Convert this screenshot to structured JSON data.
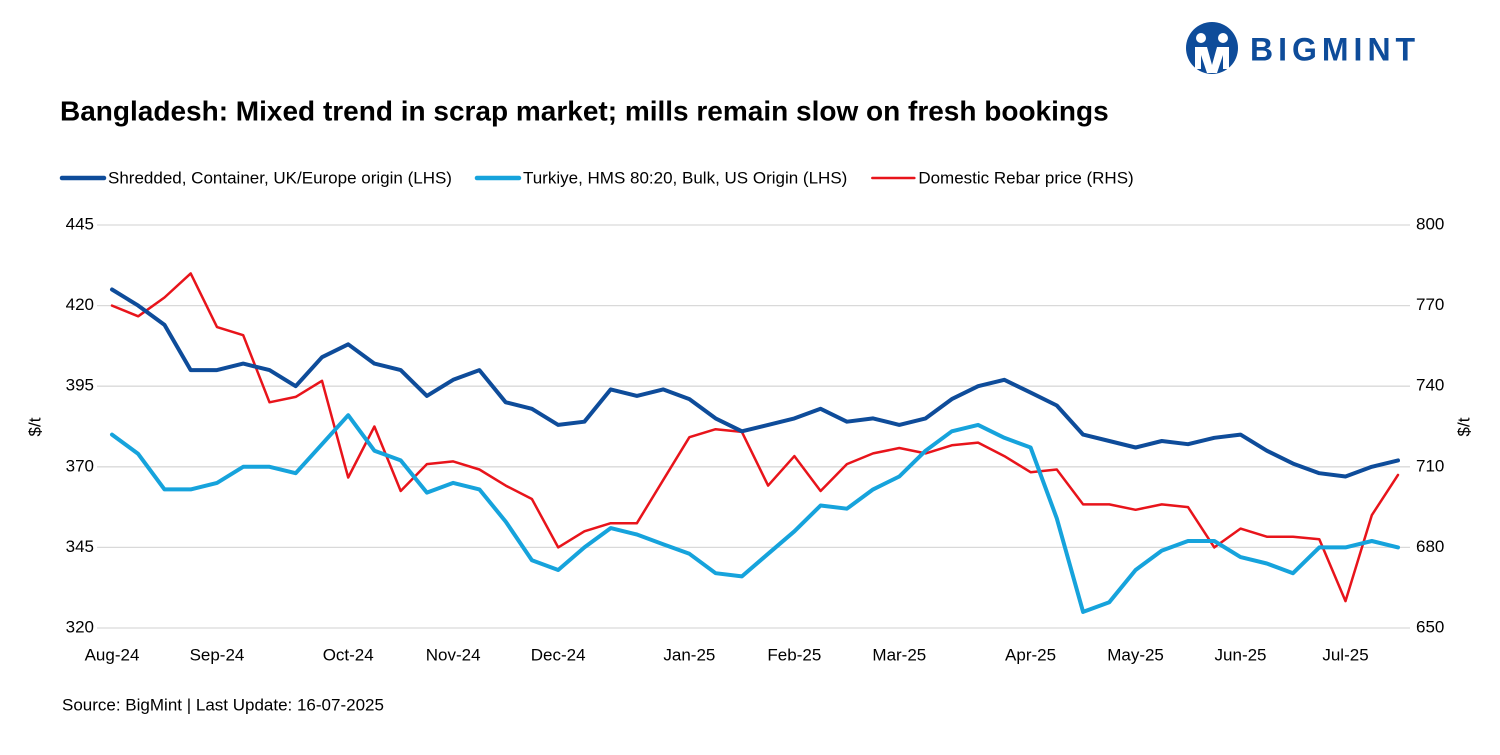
{
  "chart_data": {
    "type": "line",
    "title": "Bangladesh: Mixed trend in scrap market; mills remain slow on fresh bookings",
    "brand": "BIGMINT",
    "source": "Source: BigMint | Last Update: 16-07-2025",
    "ylabel": "$/t",
    "y2label": "$/t",
    "categories": [
      "Aug-24",
      null,
      null,
      null,
      "Sep-24",
      null,
      null,
      null,
      null,
      "Oct-24",
      null,
      null,
      null,
      "Nov-24",
      null,
      null,
      null,
      "Dec-24",
      null,
      null,
      null,
      null,
      "Jan-25",
      null,
      null,
      null,
      "Feb-25",
      null,
      null,
      null,
      "Mar-25",
      null,
      null,
      null,
      null,
      "Apr-25",
      null,
      null,
      null,
      "May-25",
      null,
      null,
      null,
      "Jun-25",
      null,
      null,
      null,
      "Jul-25",
      null,
      null
    ],
    "series": [
      {
        "name": "Shredded, Container, UK/Europe origin (LHS)",
        "color": "#0e4c9a",
        "axis": "y",
        "values": [
          425,
          420,
          414,
          400,
          400,
          402,
          400,
          395,
          404,
          408,
          402,
          400,
          392,
          397,
          400,
          390,
          388,
          383,
          384,
          394,
          392,
          394,
          391,
          385,
          381,
          383,
          385,
          388,
          384,
          385,
          383,
          385,
          391,
          395,
          397,
          393,
          389,
          380,
          378,
          376,
          378,
          377,
          379,
          380,
          375,
          371,
          368,
          367,
          370,
          372
        ]
      },
      {
        "name": "Turkiye, HMS 80:20, Bulk, US Origin (LHS)",
        "color": "#16a3dc",
        "axis": "y",
        "values": [
          380,
          374,
          363,
          363,
          365,
          370,
          370,
          368,
          377,
          386,
          375,
          372,
          362,
          365,
          363,
          353,
          341,
          338,
          345,
          351,
          349,
          346,
          343,
          337,
          336,
          343,
          350,
          358,
          357,
          363,
          367,
          375,
          381,
          383,
          379,
          376,
          354,
          325,
          328,
          338,
          344,
          347,
          347,
          342,
          340,
          337,
          345,
          345,
          347,
          345
        ]
      },
      {
        "name": "Domestic Rebar price (RHS)",
        "color": "#e8141b",
        "axis": "y2",
        "values": [
          770,
          766,
          773,
          782,
          762,
          759,
          734,
          736,
          742,
          706,
          725,
          701,
          711,
          712,
          709,
          703,
          698,
          680,
          686,
          689,
          689,
          705,
          721,
          724,
          723,
          703,
          714,
          701,
          711,
          715,
          717,
          715,
          718,
          719,
          714,
          708,
          709,
          696,
          696,
          694,
          696,
          695,
          680,
          687,
          684,
          684,
          683,
          660,
          692,
          707
        ]
      }
    ],
    "ylim": [
      320,
      445
    ],
    "yticks": [
      320,
      345,
      370,
      395,
      420,
      445
    ],
    "y2lim": [
      650,
      800
    ],
    "y2ticks": [
      650,
      680,
      710,
      740,
      770,
      800
    ],
    "grid": true
  }
}
